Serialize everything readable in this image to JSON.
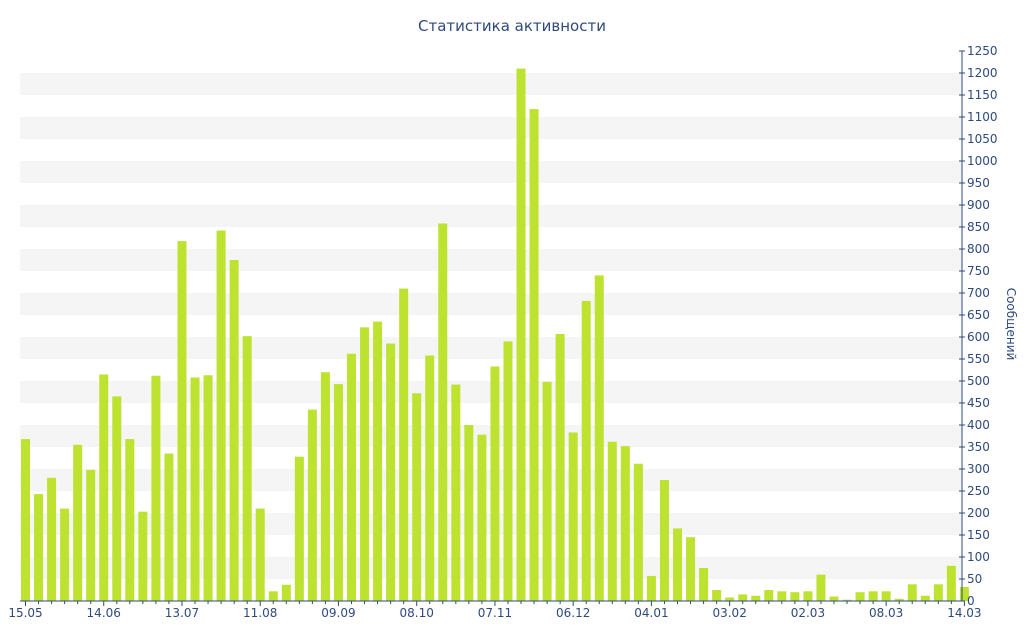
{
  "chart_data": {
    "type": "bar",
    "title": "Статистика активности",
    "ylabel": "Сообщений",
    "xlabel": "",
    "ylim": [
      0,
      1250
    ],
    "y_ticks": [
      0,
      50,
      100,
      150,
      200,
      250,
      300,
      350,
      400,
      450,
      500,
      550,
      600,
      650,
      700,
      750,
      800,
      850,
      900,
      950,
      1000,
      1050,
      1100,
      1150,
      1200,
      1250
    ],
    "y_axis_position": "right",
    "grid": "horizontal-bands",
    "x_tick_labels": [
      {
        "label": "15.05",
        "index": 0
      },
      {
        "label": "14.06",
        "index": 6
      },
      {
        "label": "13.07",
        "index": 12
      },
      {
        "label": "11.08",
        "index": 18
      },
      {
        "label": "09.09",
        "index": 24
      },
      {
        "label": "08.10",
        "index": 30
      },
      {
        "label": "07.11",
        "index": 36
      },
      {
        "label": "06.12",
        "index": 42
      },
      {
        "label": "04.01",
        "index": 48
      },
      {
        "label": "03.02",
        "index": 54
      },
      {
        "label": "02.03",
        "index": 60
      },
      {
        "label": "08.03",
        "index": 66
      },
      {
        "label": "14.03",
        "index": 72
      }
    ],
    "values": [
      368,
      243,
      280,
      210,
      355,
      298,
      515,
      465,
      368,
      203,
      512,
      335,
      818,
      508,
      513,
      842,
      775,
      602,
      210,
      22,
      37,
      328,
      435,
      520,
      493,
      562,
      622,
      635,
      585,
      710,
      472,
      558,
      858,
      492,
      400,
      378,
      533,
      590,
      1210,
      1118,
      498,
      607,
      383,
      682,
      740,
      362,
      352,
      312,
      57,
      275,
      165,
      145,
      75,
      25,
      8,
      15,
      12,
      25,
      22,
      20,
      22,
      60,
      10,
      3,
      20,
      22,
      22,
      5,
      38,
      12,
      38,
      80,
      32
    ],
    "colors": {
      "bar": "#bde230",
      "band": "#f5f5f5",
      "text": "#2e4a7d",
      "axis": "#2e4a7d"
    }
  }
}
